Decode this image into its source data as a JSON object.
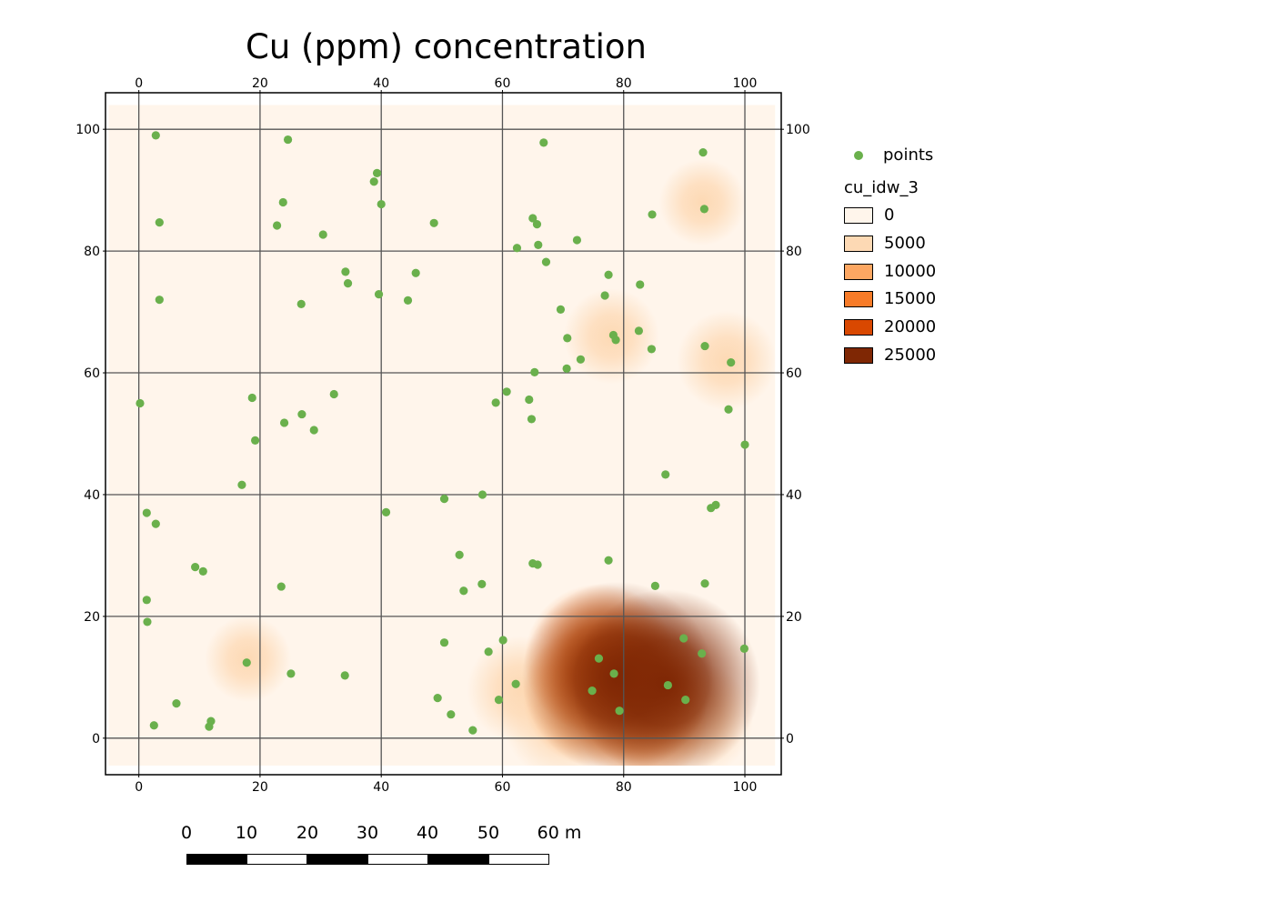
{
  "title": "Cu (ppm) concentration",
  "frame": {
    "x_ticks": [
      "0",
      "20",
      "40",
      "60",
      "80",
      "100"
    ],
    "y_ticks": [
      "0",
      "20",
      "40",
      "60",
      "80",
      "100"
    ],
    "x_tick_values": [
      0,
      20,
      40,
      60,
      80,
      100
    ],
    "y_tick_values": [
      0,
      20,
      40,
      60,
      80,
      100
    ],
    "x_range": [
      -5.5,
      106
    ],
    "y_range": [
      -6,
      106
    ]
  },
  "raster": {
    "extent_x": [
      -5,
      105
    ],
    "extent_y": [
      -4.5,
      104
    ],
    "hotspots": [
      {
        "x": 79,
        "y": 10,
        "value": 24000
      },
      {
        "x": 87,
        "y": 9,
        "value": 23000
      },
      {
        "x": 76,
        "y": 13,
        "value": 13000
      },
      {
        "x": 82,
        "y": 8,
        "value": 12000
      },
      {
        "x": 75,
        "y": 7,
        "value": 11000
      },
      {
        "x": 83,
        "y": 3,
        "value": 9000
      },
      {
        "x": 70,
        "y": 3,
        "value": 7000
      },
      {
        "x": 92,
        "y": 3,
        "value": 6000
      },
      {
        "x": 63,
        "y": 8,
        "value": 5000
      },
      {
        "x": 97,
        "y": 62,
        "value": 4000
      },
      {
        "x": 78,
        "y": 66,
        "value": 3500
      },
      {
        "x": 93,
        "y": 88,
        "value": 2500
      },
      {
        "x": 18,
        "y": 13,
        "value": 2500
      },
      {
        "x": 9,
        "y": 28,
        "value": 2000
      }
    ]
  },
  "points": {
    "color": "#6ab04c",
    "coords": [
      [
        2.8,
        99
      ],
      [
        24.6,
        98.3
      ],
      [
        66.8,
        97.8
      ],
      [
        93.1,
        96.2
      ],
      [
        39.3,
        92.8
      ],
      [
        38.8,
        91.4
      ],
      [
        23.8,
        88
      ],
      [
        40,
        87.7
      ],
      [
        93.3,
        86.9
      ],
      [
        84.7,
        86
      ],
      [
        65,
        85.4
      ],
      [
        3.4,
        84.7
      ],
      [
        22.8,
        84.2
      ],
      [
        48.7,
        84.6
      ],
      [
        65.7,
        84.4
      ],
      [
        30.4,
        82.7
      ],
      [
        72.3,
        81.8
      ],
      [
        65.9,
        81
      ],
      [
        62.4,
        80.5
      ],
      [
        67.2,
        78.2
      ],
      [
        34.1,
        76.6
      ],
      [
        45.7,
        76.4
      ],
      [
        77.5,
        76.1
      ],
      [
        34.5,
        74.7
      ],
      [
        82.7,
        74.5
      ],
      [
        39.6,
        72.9
      ],
      [
        76.9,
        72.7
      ],
      [
        3.4,
        72
      ],
      [
        44.4,
        71.9
      ],
      [
        26.8,
        71.3
      ],
      [
        69.6,
        70.4
      ],
      [
        82.5,
        66.9
      ],
      [
        78.3,
        66.2
      ],
      [
        70.7,
        65.7
      ],
      [
        78.7,
        65.4
      ],
      [
        93.4,
        64.4
      ],
      [
        84.6,
        63.9
      ],
      [
        72.9,
        62.2
      ],
      [
        97.7,
        61.7
      ],
      [
        70.6,
        60.7
      ],
      [
        65.3,
        60.1
      ],
      [
        60.7,
        56.9
      ],
      [
        32.2,
        56.5
      ],
      [
        18.7,
        55.9
      ],
      [
        64.4,
        55.6
      ],
      [
        0.2,
        55
      ],
      [
        58.9,
        55.1
      ],
      [
        97.3,
        54
      ],
      [
        26.9,
        53.2
      ],
      [
        64.8,
        52.4
      ],
      [
        24,
        51.8
      ],
      [
        28.9,
        50.6
      ],
      [
        19.2,
        48.9
      ],
      [
        100,
        48.2
      ],
      [
        86.9,
        43.3
      ],
      [
        17,
        41.6
      ],
      [
        56.7,
        40
      ],
      [
        50.4,
        39.3
      ],
      [
        95.2,
        38.3
      ],
      [
        94.4,
        37.8
      ],
      [
        1.3,
        37
      ],
      [
        40.8,
        37.1
      ],
      [
        2.8,
        35.2
      ],
      [
        52.9,
        30.1
      ],
      [
        77.5,
        29.2
      ],
      [
        9.3,
        28.1
      ],
      [
        65,
        28.7
      ],
      [
        65.8,
        28.5
      ],
      [
        10.6,
        27.4
      ],
      [
        56.6,
        25.3
      ],
      [
        93.4,
        25.4
      ],
      [
        23.5,
        24.9
      ],
      [
        85.2,
        25
      ],
      [
        53.6,
        24.2
      ],
      [
        1.3,
        22.7
      ],
      [
        1.4,
        19.1
      ],
      [
        89.9,
        16.4
      ],
      [
        60.1,
        16.1
      ],
      [
        50.4,
        15.7
      ],
      [
        99.9,
        14.7
      ],
      [
        57.7,
        14.2
      ],
      [
        92.9,
        13.9
      ],
      [
        75.9,
        13.1
      ],
      [
        17.8,
        12.4
      ],
      [
        78.4,
        10.6
      ],
      [
        25.1,
        10.6
      ],
      [
        34,
        10.3
      ],
      [
        62.2,
        8.9
      ],
      [
        87.3,
        8.7
      ],
      [
        74.8,
        7.8
      ],
      [
        49.3,
        6.6
      ],
      [
        59.4,
        6.3
      ],
      [
        90.2,
        6.3
      ],
      [
        6.2,
        5.7
      ],
      [
        79.3,
        4.5
      ],
      [
        51.5,
        3.9
      ],
      [
        11.9,
        2.8
      ],
      [
        2.5,
        2.1
      ],
      [
        11.6,
        1.9
      ],
      [
        55.1,
        1.3
      ]
    ]
  },
  "legend": {
    "points_label": "points",
    "layer_name": "cu_idw_3",
    "classes": [
      {
        "label": "0",
        "color": "#fff5eb"
      },
      {
        "label": "5000",
        "color": "#fdd9b4"
      },
      {
        "label": "10000",
        "color": "#fda762"
      },
      {
        "label": "15000",
        "color": "#f77b28"
      },
      {
        "label": "20000",
        "color": "#d94801"
      },
      {
        "label": "25000",
        "color": "#7f2704"
      }
    ]
  },
  "scalebar": {
    "labels": [
      "0",
      "10",
      "20",
      "30",
      "40",
      "50",
      "60 m"
    ],
    "segment_colors": [
      "#000000",
      "#ffffff",
      "#000000",
      "#ffffff",
      "#000000",
      "#ffffff"
    ]
  }
}
